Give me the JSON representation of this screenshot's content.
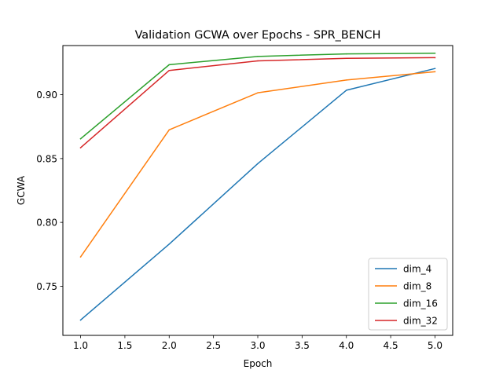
{
  "chart_data": {
    "type": "line",
    "title": "Validation GCWA over Epochs - SPR_BENCH",
    "xlabel": "Epoch",
    "ylabel": "GCWA",
    "x": [
      1.0,
      2.0,
      3.0,
      4.0,
      5.0
    ],
    "xlim": [
      0.8,
      5.2
    ],
    "ylim": [
      0.7115,
      0.9385
    ],
    "xticks": [
      1.0,
      1.5,
      2.0,
      2.5,
      3.0,
      3.5,
      4.0,
      4.5,
      5.0
    ],
    "xtick_labels": [
      "1.0",
      "1.5",
      "2.0",
      "2.5",
      "3.0",
      "3.5",
      "4.0",
      "4.5",
      "5.0"
    ],
    "yticks": [
      0.75,
      0.8,
      0.85,
      0.9
    ],
    "ytick_labels": [
      "0.75",
      "0.80",
      "0.85",
      "0.90"
    ],
    "grid": false,
    "legend_position": "lower right",
    "series": [
      {
        "name": "dim_4",
        "color": "#1f77b4",
        "values": [
          0.7235,
          0.783,
          0.846,
          0.9035,
          0.9205
        ]
      },
      {
        "name": "dim_8",
        "color": "#ff7f0e",
        "values": [
          0.773,
          0.8725,
          0.9015,
          0.9115,
          0.918
        ]
      },
      {
        "name": "dim_16",
        "color": "#2ca02c",
        "values": [
          0.8655,
          0.9235,
          0.93,
          0.932,
          0.9325
        ]
      },
      {
        "name": "dim_32",
        "color": "#d62728",
        "values": [
          0.8585,
          0.919,
          0.9265,
          0.9285,
          0.929
        ]
      }
    ]
  }
}
